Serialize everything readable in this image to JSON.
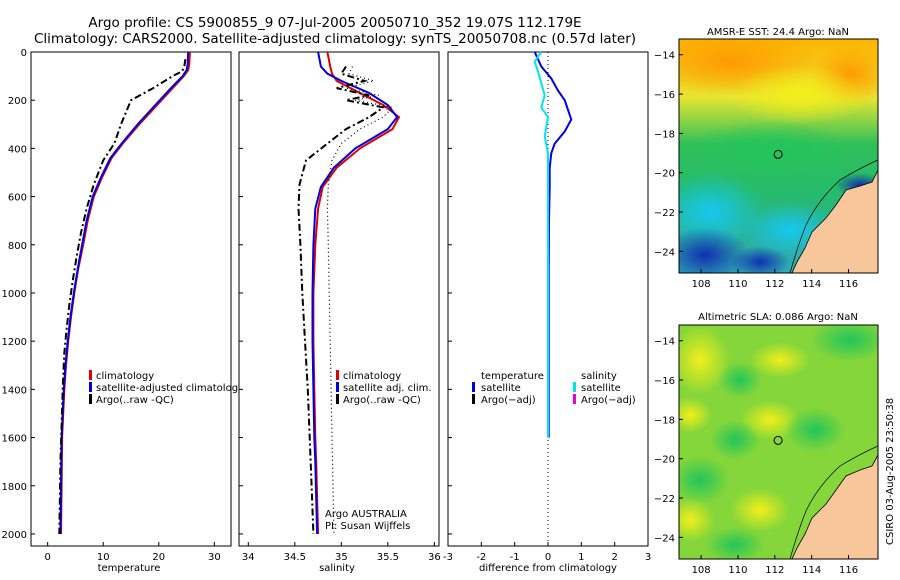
{
  "header": {
    "line1": "Argo profile: CS 5900855_9 07-Jul-2005 20050710_352 19.07S 112.179E",
    "line2": "Climatology: CARS2000. Satellite-adjusted climatology: synTS_20050708.nc (0.57d later)"
  },
  "footer": {
    "credit": "CSIRO 03-Aug-2005 23:50:38",
    "argo_label": "Argo AUSTRALIA",
    "pi_label": "PI: Susan Wijffels"
  },
  "colors": {
    "climatology": "#e00000",
    "satellite": "#0000e6",
    "argo": "#000000",
    "sat_salinity": "#00e5ee",
    "argo_salinity": "#e000e0",
    "land": "#f7c69a"
  },
  "chart_data": [
    {
      "id": "temperature",
      "type": "line",
      "xlabel": "temperature",
      "ylabel": "",
      "xlim": [
        -3,
        33
      ],
      "ylim": [
        2050,
        0
      ],
      "xticks": [
        0,
        10,
        20,
        30
      ],
      "yticks": [
        0,
        200,
        400,
        600,
        800,
        1000,
        1200,
        1400,
        1600,
        1800,
        2000
      ],
      "legend": [
        "climatology",
        "satellite-adjusted climatology",
        "Argo(..raw -QC)"
      ],
      "series": [
        {
          "name": "climatology",
          "style": "solid",
          "color": "#e00000",
          "x": [
            25.6,
            25.5,
            25.3,
            24.5,
            22.5,
            16.5,
            13.5,
            11.5,
            9.8,
            8.3,
            7.2,
            6.4,
            5.5,
            4.8,
            4.2,
            3.7,
            3.3,
            3.0,
            2.8,
            2.6,
            2.5,
            2.4
          ],
          "y": [
            0,
            50,
            75,
            100,
            150,
            300,
            380,
            440,
            520,
            600,
            700,
            800,
            900,
            1000,
            1100,
            1200,
            1300,
            1400,
            1500,
            1600,
            1800,
            2000
          ]
        },
        {
          "name": "satellite-adjusted climatology",
          "style": "solid",
          "color": "#0000e6",
          "x": [
            25.3,
            25.2,
            25.0,
            24.3,
            22.2,
            16.2,
            13.3,
            11.3,
            9.6,
            8.1,
            7.0,
            6.2,
            5.4,
            4.7,
            4.1,
            3.6,
            3.2,
            2.9,
            2.7,
            2.5,
            2.4,
            2.3
          ],
          "y": [
            0,
            50,
            75,
            100,
            150,
            300,
            380,
            440,
            520,
            600,
            700,
            800,
            900,
            1000,
            1100,
            1200,
            1300,
            1400,
            1500,
            1600,
            1800,
            2000
          ]
        },
        {
          "name": "Argo(..raw -QC)",
          "style": "dashdot",
          "color": "#000000",
          "x": [
            24.8,
            24.6,
            24.2,
            22.5,
            19.0,
            15.0,
            13.2,
            12.0,
            10.0,
            8.3,
            7.0,
            6.0,
            5.2,
            4.5,
            3.9,
            3.4,
            3.0,
            2.7,
            2.5,
            2.3,
            2.2,
            2.1
          ],
          "y": [
            30,
            60,
            80,
            100,
            150,
            200,
            300,
            380,
            450,
            550,
            650,
            750,
            850,
            950,
            1050,
            1150,
            1250,
            1400,
            1550,
            1700,
            1850,
            2000
          ]
        }
      ]
    },
    {
      "id": "salinity",
      "type": "line",
      "xlabel": "salinity",
      "ylabel": "",
      "xlim": [
        33.9,
        36.05
      ],
      "ylim": [
        2050,
        0
      ],
      "xticks": [
        34,
        34.5,
        35,
        35.5,
        36
      ],
      "legend": [
        "climatology",
        "satellite adj. clim.",
        "Argo(..raw -QC)"
      ],
      "series": [
        {
          "name": "climatology",
          "style": "solid",
          "color": "#e00000",
          "x": [
            34.85,
            34.88,
            34.9,
            34.95,
            35.2,
            35.45,
            35.62,
            35.55,
            35.2,
            34.95,
            34.8,
            34.75,
            34.72,
            34.7,
            34.7,
            34.71,
            34.72,
            34.73,
            34.74,
            34.75
          ],
          "y": [
            0,
            60,
            90,
            120,
            170,
            220,
            270,
            320,
            400,
            480,
            560,
            650,
            800,
            1000,
            1200,
            1400,
            1600,
            1700,
            1850,
            2000
          ]
        },
        {
          "name": "satellite adj. clim.",
          "style": "solid",
          "color": "#0000e6",
          "x": [
            34.75,
            34.78,
            34.85,
            35.0,
            35.3,
            35.5,
            35.6,
            35.5,
            35.15,
            34.92,
            34.78,
            34.72,
            34.7,
            34.69,
            34.69,
            34.7,
            34.71,
            34.72,
            34.73,
            34.74
          ],
          "y": [
            0,
            60,
            90,
            120,
            170,
            220,
            270,
            320,
            400,
            480,
            560,
            650,
            800,
            1000,
            1200,
            1400,
            1600,
            1700,
            1850,
            2000
          ]
        },
        {
          "name": "Argo(..raw -QC)",
          "style": "dashdot",
          "color": "#000000",
          "x": [
            35.05,
            35.0,
            35.25,
            34.95,
            35.3,
            35.05,
            35.45,
            35.3,
            35.05,
            34.85,
            34.62,
            34.55,
            34.54,
            34.56,
            34.58,
            34.61,
            34.64,
            34.66,
            34.68,
            34.7
          ],
          "y": [
            60,
            90,
            120,
            150,
            180,
            200,
            230,
            270,
            320,
            380,
            450,
            550,
            650,
            800,
            1000,
            1200,
            1400,
            1600,
            1800,
            2000
          ]
        },
        {
          "name": "Argo salinity (dotted)",
          "style": "dotted",
          "color": "#000000",
          "x": [
            35.12,
            35.08,
            35.35,
            35.05,
            35.4,
            35.15,
            35.55,
            35.45,
            35.2,
            35.0,
            34.9,
            34.86,
            34.85,
            34.86,
            34.87,
            34.88,
            34.89,
            34.9,
            34.91,
            34.92
          ],
          "y": [
            60,
            90,
            120,
            150,
            180,
            200,
            230,
            270,
            320,
            380,
            450,
            550,
            650,
            800,
            1000,
            1200,
            1400,
            1600,
            1800,
            2000
          ]
        }
      ]
    },
    {
      "id": "difference",
      "type": "line",
      "xlabel": "difference from climatology",
      "ylabel": "",
      "xlim": [
        -3,
        3
      ],
      "ylim": [
        2050,
        0
      ],
      "xticks": [
        -3,
        -2,
        -1,
        0,
        1,
        2,
        3
      ],
      "legend_left_title": "temperature",
      "legend_left": [
        "satellite",
        "Argo(−adj)"
      ],
      "legend_right_title": "salinity",
      "legend_right": [
        "satellite",
        "Argo(−adj)"
      ],
      "series": [
        {
          "name": "temperature satellite",
          "style": "solid",
          "color": "#0000e6",
          "x": [
            -0.4,
            -0.3,
            -0.2,
            0.1,
            0.3,
            0.5,
            0.7,
            0.5,
            0.2,
            0.1,
            0.05,
            0.05,
            0.03,
            0.02,
            0.02,
            0.02
          ],
          "y": [
            0,
            30,
            60,
            110,
            160,
            200,
            280,
            330,
            380,
            420,
            480,
            560,
            700,
            900,
            1200,
            1600
          ]
        },
        {
          "name": "salinity satellite",
          "style": "solid",
          "color": "#00e5ee",
          "x": [
            -0.2,
            -0.4,
            -0.3,
            -0.2,
            -0.1,
            -0.2,
            0.0,
            -0.1,
            0.0,
            0.0,
            0.0,
            0.0,
            0.0
          ],
          "y": [
            0,
            40,
            80,
            130,
            180,
            230,
            270,
            350,
            420,
            500,
            700,
            1000,
            1600
          ]
        }
      ]
    }
  ],
  "maps": [
    {
      "id": "sst",
      "title": "AMSR-E SST: 24.4 Argo: NaN",
      "xticks": [
        108,
        110,
        112,
        114,
        116
      ],
      "yticks": [
        -14,
        -16,
        -18,
        -20,
        -22,
        -24
      ],
      "xlim": [
        106.8,
        117.6
      ],
      "ylim": [
        -25.1,
        -13.2
      ],
      "marker": [
        112.179,
        -19.07
      ]
    },
    {
      "id": "sla",
      "title": "Altimetric SLA: 0.086 Argo: NaN",
      "xticks": [
        108,
        110,
        112,
        114,
        116
      ],
      "yticks": [
        -14,
        -16,
        -18,
        -20,
        -22,
        -24
      ],
      "xlim": [
        106.8,
        117.6
      ],
      "ylim": [
        -25.1,
        -13.2
      ],
      "marker": [
        112.179,
        -19.07
      ]
    }
  ]
}
